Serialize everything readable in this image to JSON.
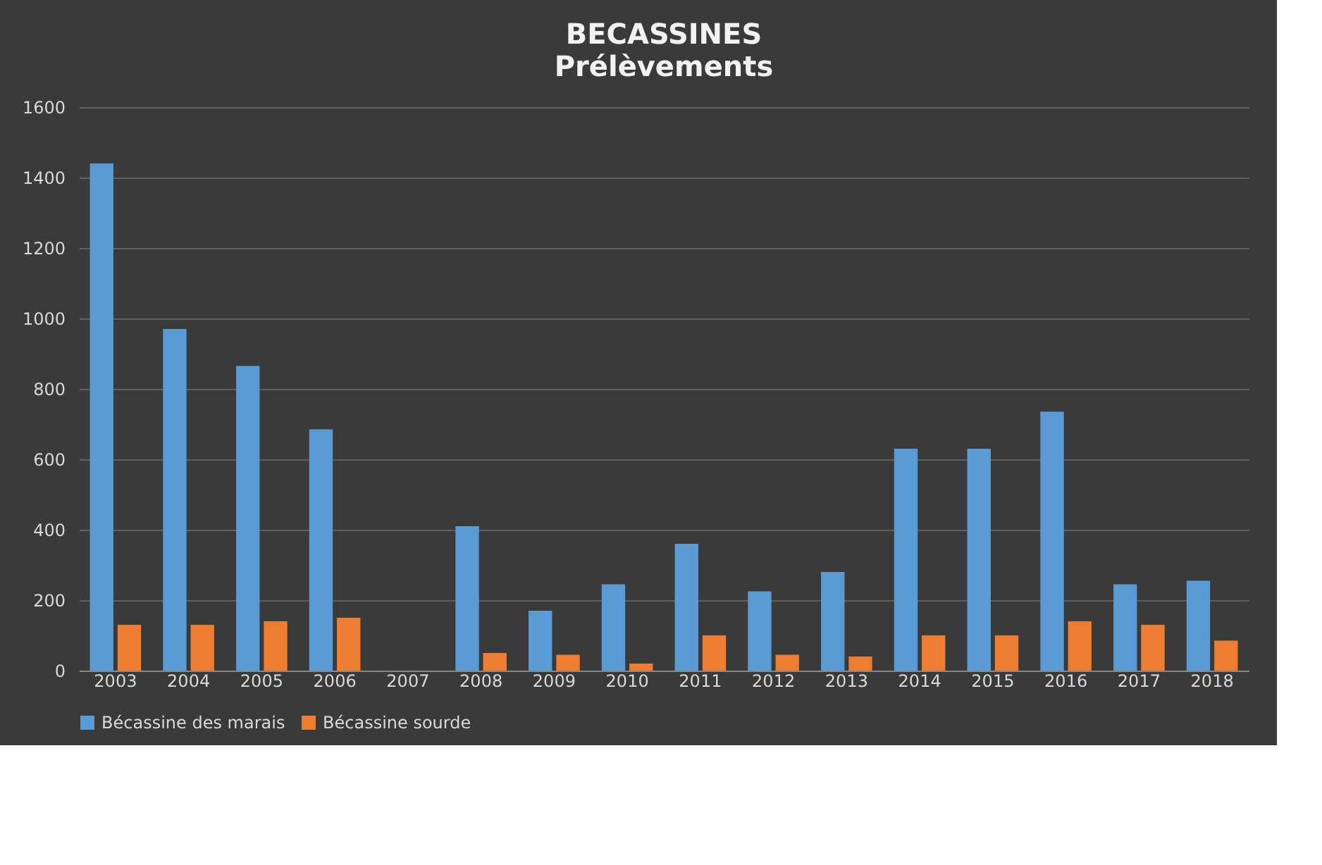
{
  "chart_data": {
    "type": "bar",
    "title": "BECASSINES",
    "subtitle": "Prélèvements",
    "categories": [
      "2003",
      "2004",
      "2005",
      "2006",
      "2007",
      "2008",
      "2009",
      "2010",
      "2011",
      "2012",
      "2013",
      "2014",
      "2015",
      "2016",
      "2017",
      "2018"
    ],
    "series": [
      {
        "name": "Bécassine des marais",
        "color": "#5b9bd5",
        "values": [
          1440,
          970,
          865,
          685,
          0,
          410,
          170,
          245,
          360,
          225,
          280,
          630,
          630,
          735,
          245,
          255
        ]
      },
      {
        "name": "Bécassine sourde",
        "color": "#ed7d31",
        "values": [
          130,
          130,
          140,
          150,
          0,
          50,
          45,
          20,
          100,
          45,
          40,
          100,
          100,
          140,
          130,
          85
        ]
      }
    ],
    "ylim": [
      0,
      1600
    ],
    "yticks": [
      0,
      200,
      400,
      600,
      800,
      1000,
      1200,
      1400,
      1600
    ],
    "grid": "y",
    "legend": "bottom"
  }
}
